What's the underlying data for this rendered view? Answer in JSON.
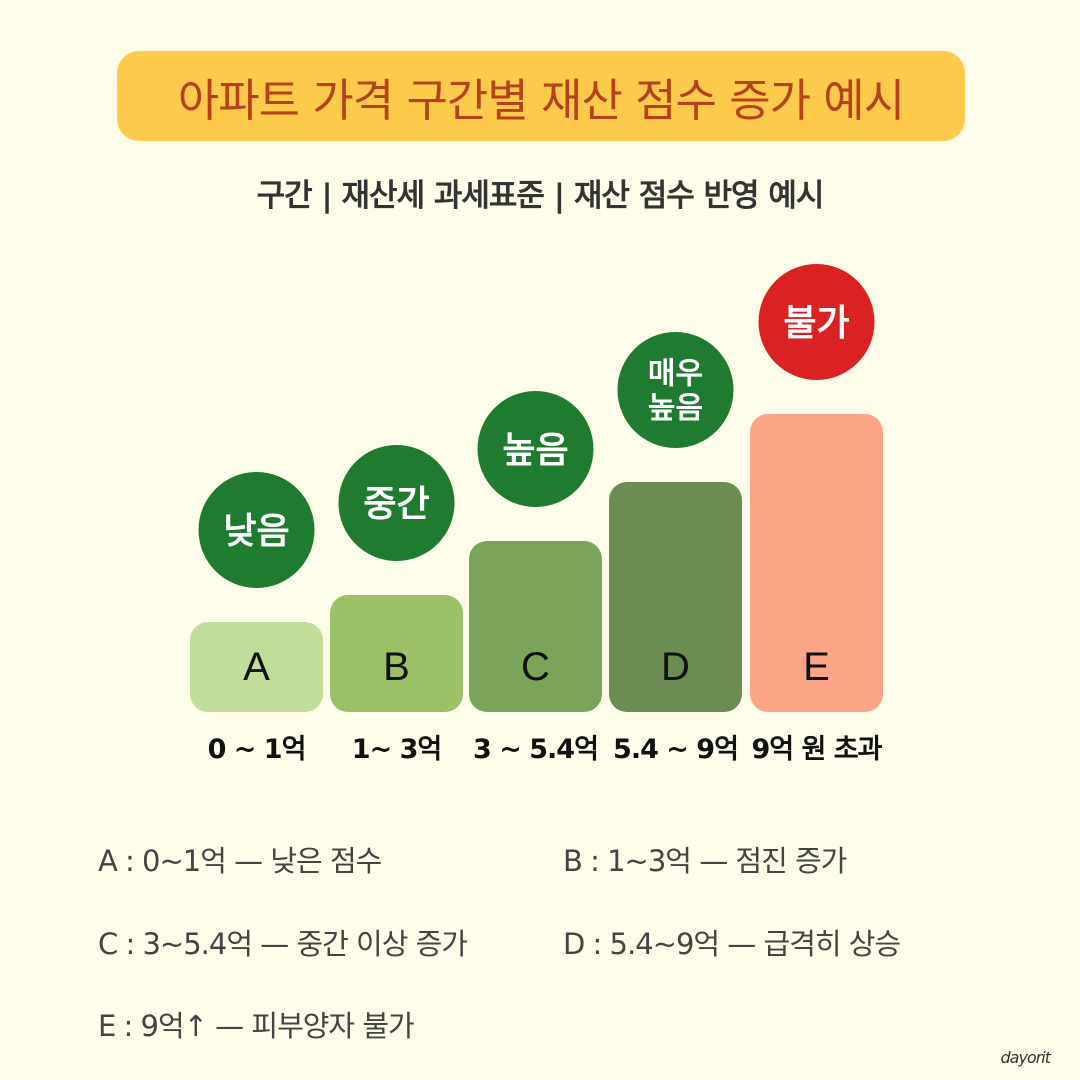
{
  "title": "아파트 가격 구간별 재산 점수 증가 예시",
  "subtitle": "구간 | 재산세 과세표준 | 재산 점수 반영 예시",
  "chart_data": {
    "type": "bar",
    "categories": [
      "A",
      "B",
      "C",
      "D",
      "E"
    ],
    "ranges": [
      "0 ~ 1억",
      "1~ 3억",
      "3 ~ 5.4억",
      "5.4 ~ 9억",
      "9억 원 초과"
    ],
    "values": [
      1,
      2,
      3,
      4,
      5
    ],
    "badges": [
      "낮음",
      "중간",
      "높음",
      "매우 높음",
      "불가"
    ],
    "bar_colors": [
      "#c1dd9a",
      "#9bc066",
      "#7ba45a",
      "#6b8c52",
      "#fba586"
    ],
    "badge_colors": [
      "#1e7b30",
      "#1e7b30",
      "#1e7b30",
      "#1e7b30",
      "#db2222"
    ],
    "ylim": [
      0,
      5
    ]
  },
  "legend": [
    "A : 0~1억 — 낮은 점수",
    "B : 1~3억 — 점진 증가",
    "C : 3~5.4억 — 중간 이상 증가",
    "D : 5.4~9억 — 급격히 상승",
    "E : 9억↑ — 피부양자 불가"
  ],
  "watermark": "dayorit"
}
